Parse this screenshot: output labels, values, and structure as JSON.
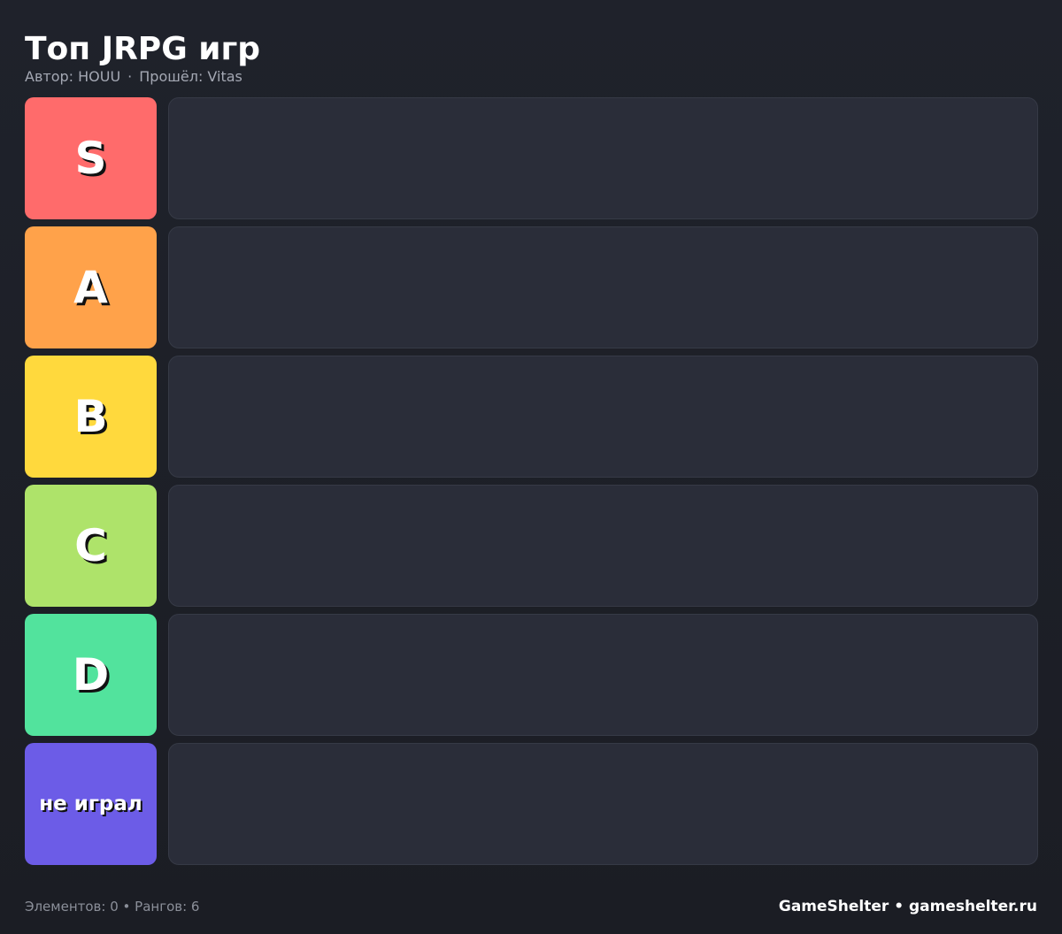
{
  "header": {
    "title": "Топ JRPG игр",
    "author": "Автор: HOUU",
    "separator": "·",
    "completed_by": "Прошёл: Vitas"
  },
  "tiers": [
    {
      "label": "S",
      "color": "#ff6b6b"
    },
    {
      "label": "A",
      "color": "#ffa24a"
    },
    {
      "label": "B",
      "color": "#ffd93d"
    },
    {
      "label": "C",
      "color": "#aee36a"
    },
    {
      "label": "D",
      "color": "#52e39d"
    },
    {
      "label": "не играл",
      "color": "#6c5ce7"
    }
  ],
  "footer": {
    "stats": "Элементов: 0 • Рангов: 6",
    "brand": "GameShelter • gameshelter.ru"
  }
}
